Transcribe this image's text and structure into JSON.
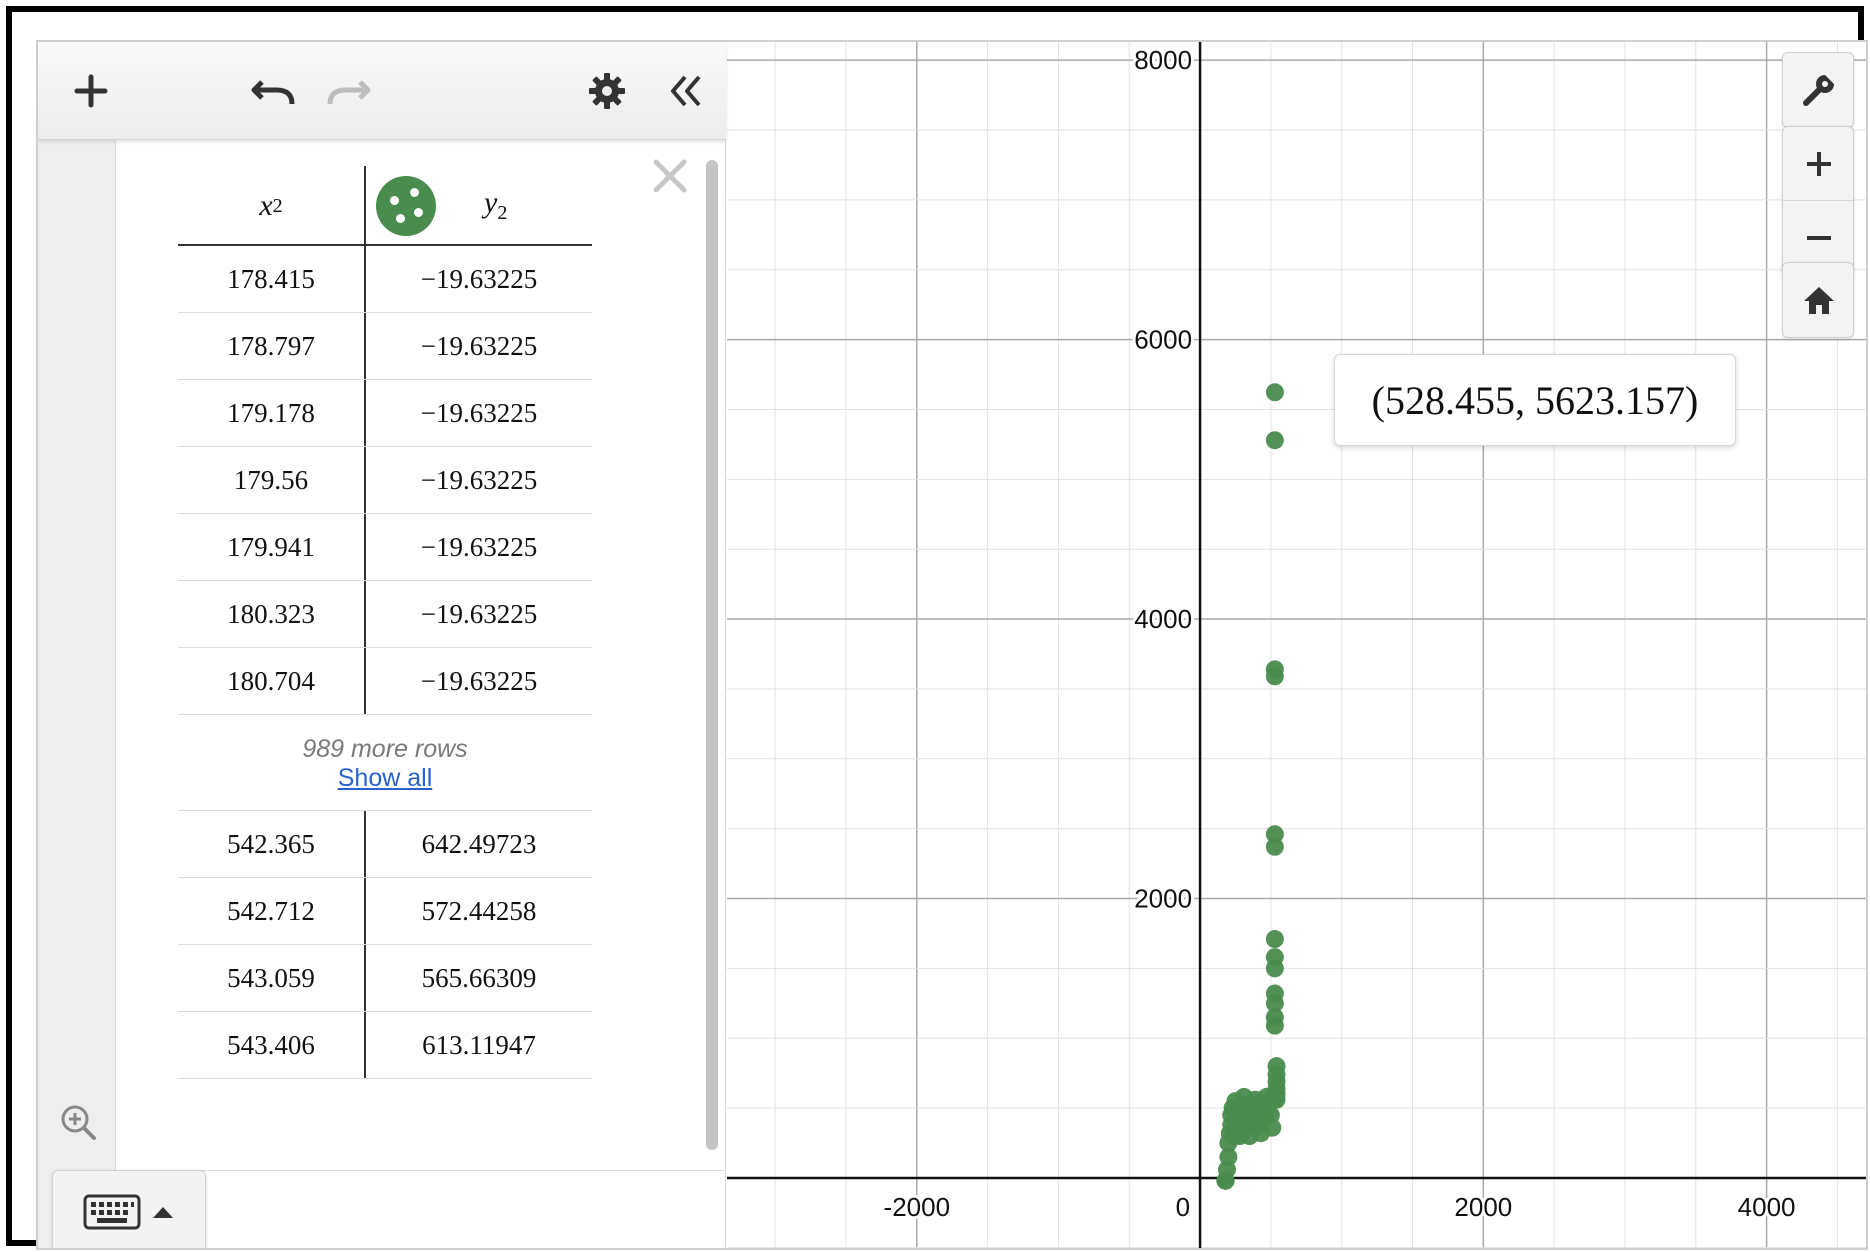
{
  "toolbar": {
    "add_icon": "plus-icon",
    "undo_icon": "undo-icon",
    "redo_icon": "redo-icon",
    "settings_icon": "gear-icon",
    "collapse_icon": "double-chevron-left-icon"
  },
  "table": {
    "x_header": "x",
    "x_sub": "2",
    "y_header": "y",
    "y_sub": "2",
    "series_color": "#4a8b4e",
    "top_rows": [
      {
        "x": "178.415",
        "y": "−19.63225"
      },
      {
        "x": "178.797",
        "y": "−19.63225"
      },
      {
        "x": "179.178",
        "y": "−19.63225"
      },
      {
        "x": "179.56",
        "y": "−19.63225"
      },
      {
        "x": "179.941",
        "y": "−19.63225"
      },
      {
        "x": "180.323",
        "y": "−19.63225"
      },
      {
        "x": "180.704",
        "y": "−19.63225"
      }
    ],
    "more_rows_text": "989 more rows",
    "show_all_label": "Show all",
    "bottom_rows": [
      {
        "x": "542.365",
        "y": "642.49723"
      },
      {
        "x": "542.712",
        "y": "572.44258"
      },
      {
        "x": "543.059",
        "y": "565.66309"
      },
      {
        "x": "543.406",
        "y": "613.11947"
      }
    ]
  },
  "graph": {
    "x_ticks": [
      "-2000",
      "0",
      "2000",
      "4000"
    ],
    "y_ticks": [
      "2000",
      "4000",
      "6000",
      "8000"
    ],
    "tooltip": "(528.455, 5623.157)",
    "point_color": "#4a8b4e"
  },
  "chart_data": {
    "type": "scatter",
    "xlim": [
      -3340,
      4730
    ],
    "ylim": [
      -530,
      8130
    ],
    "x_ticks": [
      -2000,
      0,
      2000,
      4000
    ],
    "y_ticks": [
      0,
      2000,
      4000,
      6000,
      8000
    ],
    "grid": true,
    "series": [
      {
        "color": "#4a8b4e",
        "points": [
          [
            528.455,
            5623.157
          ],
          [
            528,
            5280
          ],
          [
            528,
            3640
          ],
          [
            528,
            3590
          ],
          [
            528,
            2460
          ],
          [
            528,
            2370
          ],
          [
            528,
            1710
          ],
          [
            528,
            1580
          ],
          [
            528,
            1500
          ],
          [
            528,
            1320
          ],
          [
            528,
            1250
          ],
          [
            528,
            1150
          ],
          [
            528,
            1090
          ],
          [
            540,
            800
          ],
          [
            540,
            740
          ],
          [
            540,
            690
          ],
          [
            540,
            640
          ],
          [
            540,
            600
          ],
          [
            540,
            560
          ],
          [
            178.415,
            -19.63225
          ],
          [
            179.56,
            -19.63225
          ],
          [
            180.704,
            -19.63225
          ],
          [
            190,
            60
          ],
          [
            200,
            150
          ],
          [
            200,
            250
          ],
          [
            210,
            320
          ],
          [
            220,
            380
          ],
          [
            220,
            450
          ],
          [
            240,
            300
          ],
          [
            260,
            400
          ],
          [
            280,
            480
          ],
          [
            300,
            350
          ],
          [
            320,
            450
          ],
          [
            340,
            520
          ],
          [
            360,
            420
          ],
          [
            380,
            500
          ],
          [
            400,
            380
          ],
          [
            420,
            460
          ],
          [
            440,
            540
          ],
          [
            460,
            430
          ],
          [
            480,
            510
          ],
          [
            500,
            450
          ],
          [
            520,
            560
          ],
          [
            230,
            500
          ],
          [
            250,
            550
          ],
          [
            280,
            300
          ],
          [
            310,
            580
          ],
          [
            350,
            300
          ],
          [
            390,
            560
          ],
          [
            430,
            320
          ],
          [
            470,
            580
          ],
          [
            510,
            360
          ]
        ]
      }
    ]
  },
  "controls": {
    "settings_icon": "wrench-icon",
    "zoom_in_icon": "plus-icon",
    "zoom_out_icon": "minus-icon",
    "home_icon": "home-icon"
  },
  "panel": {
    "zoom_fit_icon": "zoom-fit-icon",
    "keyboard_icon": "keyboard-icon"
  }
}
